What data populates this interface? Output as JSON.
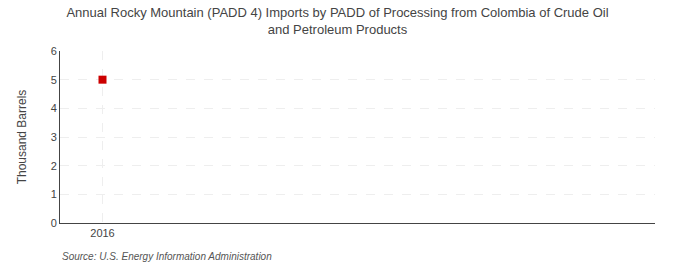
{
  "chart_data": {
    "type": "scatter",
    "title": "Annual Rocky Mountain (PADD 4) Imports by PADD of Processing from Colombia of Crude Oil\nand Petroleum Products",
    "ylabel": "Thousand Barrels",
    "source": "Source: U.S. Energy Information Administration",
    "x": [
      2016
    ],
    "values": [
      5
    ],
    "color": "#cc0000",
    "marker": "square",
    "xlim": [
      2015.5,
      2022.5
    ],
    "xticks": [
      2016
    ],
    "ylim": [
      0,
      6
    ],
    "yticks": [
      0,
      1,
      2,
      3,
      4,
      5,
      6
    ],
    "grid": true
  }
}
